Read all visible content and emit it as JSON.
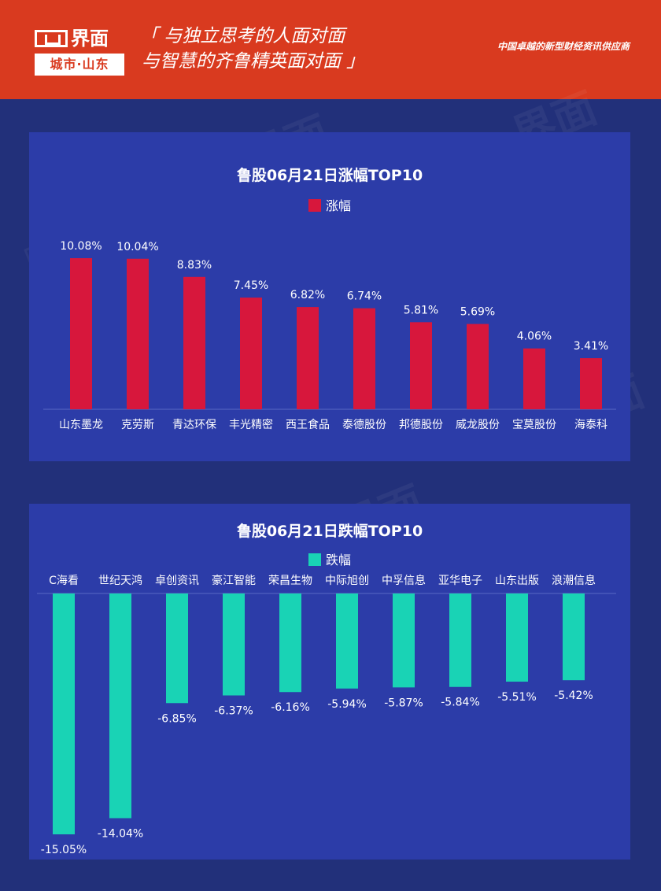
{
  "header": {
    "logo_brand": "界面",
    "logo_sub": "城市·山东",
    "slogan_line1": "「 与独立思考的人面对面",
    "slogan_line2": "与智慧的齐鲁精英面对面 」",
    "tagline": "中国卓越的新型财经资讯供应商",
    "bg_color": "#d93a1f"
  },
  "chart_data": [
    {
      "type": "bar",
      "title": "鲁股06月21日涨幅TOP10",
      "categories": [
        "山东墨龙",
        "克劳斯",
        "青达环保",
        "丰光精密",
        "西王食品",
        "泰德股份",
        "邦德股份",
        "威龙股份",
        "宝莫股份",
        "海泰科"
      ],
      "series": [
        {
          "name": "涨幅",
          "values": [
            10.08,
            10.04,
            8.83,
            7.45,
            6.82,
            6.74,
            5.81,
            5.69,
            4.06,
            3.41
          ],
          "color": "#d7173c"
        }
      ],
      "value_labels": [
        "10.08%",
        "10.04%",
        "8.83%",
        "7.45%",
        "6.82%",
        "6.74%",
        "5.81%",
        "5.69%",
        "4.06%",
        "3.41%"
      ],
      "ylim": [
        0,
        10.08
      ],
      "legend_position": "top-center",
      "grid": false
    },
    {
      "type": "bar",
      "title": "鲁股06月21日跌幅TOP10",
      "categories": [
        "C海看",
        "世纪天鸿",
        "卓创资讯",
        "豪江智能",
        "荣昌生物",
        "中际旭创",
        "中孚信息",
        "亚华电子",
        "山东出版",
        "浪潮信息"
      ],
      "series": [
        {
          "name": "跌幅",
          "values": [
            -15.05,
            -14.04,
            -6.85,
            -6.37,
            -6.16,
            -5.94,
            -5.87,
            -5.84,
            -5.51,
            -5.42
          ],
          "color": "#19d3b5"
        }
      ],
      "value_labels": [
        "-15.05%",
        "-14.04%",
        "-6.85%",
        "-6.37%",
        "-6.16%",
        "-5.94%",
        "-5.87%",
        "-5.84%",
        "-5.51%",
        "-5.42%"
      ],
      "ylim": [
        -15.05,
        0
      ],
      "legend_position": "top-center",
      "grid": false
    }
  ]
}
